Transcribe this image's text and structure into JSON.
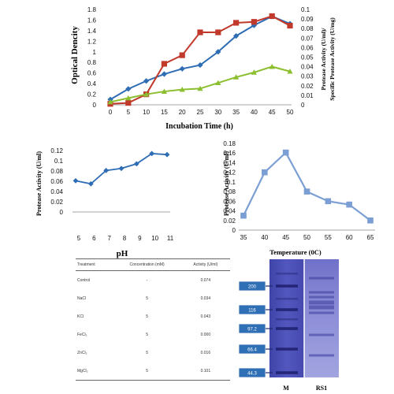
{
  "chart_data": [
    {
      "id": "growth",
      "type": "line",
      "xlabel": "Incubation Time (h)",
      "ylabel": "Optical Dencity",
      "ylabel_right": [
        "Protease Activity (U/ml)/",
        "Specific Protease Activity (U/mg)"
      ],
      "x": [
        0,
        5,
        10,
        15,
        20,
        25,
        30,
        35,
        40,
        45,
        50
      ],
      "xlim": [
        0,
        50
      ],
      "ylim": [
        0,
        1.8
      ],
      "y2lim": [
        0,
        0.1
      ],
      "yticks": [
        "0",
        "0.2",
        "0.4",
        "0.6",
        "0.8",
        "1",
        "1.2",
        "1.4",
        "1.6",
        "1.8"
      ],
      "y2ticks": [
        "0",
        "0.01",
        "0.02",
        "0.03",
        "0.04",
        "0.05",
        "0.06",
        "0.07",
        "0.08",
        "0.09",
        "0.1"
      ],
      "series": [
        {
          "axis": "left",
          "color": "#2e6db4",
          "marker": "diamond",
          "values": [
            0.1,
            0.3,
            0.45,
            0.58,
            0.68,
            0.75,
            1.0,
            1.3,
            1.5,
            1.67,
            1.53
          ]
        },
        {
          "axis": "right",
          "color": "#c0392b",
          "marker": "square",
          "values": [
            0.001,
            0.002,
            0.011,
            0.043,
            0.052,
            0.076,
            0.076,
            0.086,
            0.087,
            0.093,
            0.083
          ]
        },
        {
          "axis": "right",
          "color": "#8cbf2f",
          "marker": "triangle",
          "values": [
            0.003,
            0.007,
            0.011,
            0.014,
            0.016,
            0.017,
            0.023,
            0.029,
            0.034,
            0.04,
            0.035
          ]
        }
      ]
    },
    {
      "id": "ph",
      "type": "line",
      "xlabel": "pH",
      "ylabel": "Protease Activity (U/ml)",
      "x": [
        5,
        6,
        7,
        8,
        9,
        10,
        11
      ],
      "values": [
        0.061,
        0.055,
        0.081,
        0.085,
        0.094,
        0.114,
        0.112
      ],
      "xticks": [
        "5",
        "6",
        "7",
        "8",
        "9",
        "10",
        "11"
      ],
      "ylim": [
        0,
        0.12
      ],
      "yticks": [
        "0",
        "0.02",
        "0.04",
        "0.06",
        "0.08",
        "0.1",
        "0.12"
      ],
      "color": "#2e6db4"
    },
    {
      "id": "temperature",
      "type": "line",
      "xlabel": "Temperature (0C)",
      "ylabel": "Protease Activity (U/ml)",
      "x": [
        35,
        40,
        45,
        50,
        55,
        60,
        65
      ],
      "values": [
        0.03,
        0.12,
        0.161,
        0.08,
        0.06,
        0.053,
        0.02
      ],
      "xticks": [
        "35",
        "40",
        "45",
        "50",
        "55",
        "60",
        "65"
      ],
      "ylim": [
        0,
        0.18
      ],
      "yticks": [
        "0",
        "0.02",
        "0.04",
        "0.06",
        "0.08",
        "0.1",
        "0.12",
        "0.14",
        "0.16",
        "0.18"
      ],
      "color": "#7b9fd4"
    },
    {
      "id": "treatment",
      "type": "table",
      "headers": [
        "Treatment",
        "Concentration (mM)",
        "Activity (U/ml)"
      ],
      "rows": [
        [
          "Control",
          "-",
          "0.074"
        ],
        [
          "NaCl",
          "5",
          "0.034"
        ],
        [
          "KCl",
          "5",
          "0.043"
        ],
        [
          "FeCl₂",
          "5",
          "0.000"
        ],
        [
          "ZnCl₂",
          "5",
          "0.016"
        ],
        [
          "MgCl₂",
          "5",
          "0.101"
        ]
      ]
    }
  ],
  "gel": {
    "markers": [
      "200",
      "116",
      "97.2",
      "66.4",
      "44.3"
    ],
    "lane_labels": [
      "M",
      "RS1"
    ],
    "colors": {
      "gel": "#4b4fb8",
      "label_box": "#2f6fb5"
    }
  }
}
